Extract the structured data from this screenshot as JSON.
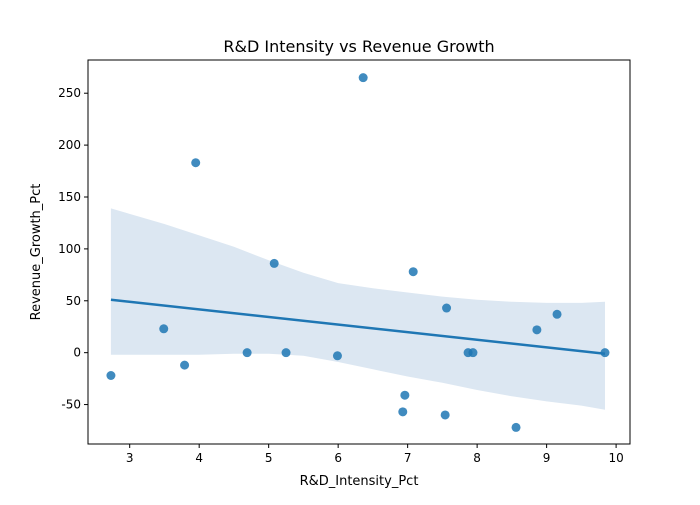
{
  "chart_data": {
    "type": "scatter",
    "title": "R&D Intensity vs Revenue Growth",
    "xlabel": "R&D_Intensity_Pct",
    "ylabel": "Revenue_Growth_Pct",
    "xlim": [
      2.4,
      10.2
    ],
    "ylim": [
      -88,
      282
    ],
    "x_ticks": [
      3,
      4,
      5,
      6,
      7,
      8,
      9,
      10
    ],
    "y_ticks": [
      -50,
      0,
      50,
      100,
      150,
      200,
      250
    ],
    "grid": false,
    "legend": "none",
    "points": [
      {
        "x": 2.73,
        "y": -22
      },
      {
        "x": 3.49,
        "y": 23
      },
      {
        "x": 3.79,
        "y": -12
      },
      {
        "x": 3.95,
        "y": 183
      },
      {
        "x": 4.69,
        "y": 0
      },
      {
        "x": 5.08,
        "y": 86
      },
      {
        "x": 5.25,
        "y": 0
      },
      {
        "x": 5.99,
        "y": -3
      },
      {
        "x": 6.36,
        "y": 265
      },
      {
        "x": 6.93,
        "y": -57
      },
      {
        "x": 6.96,
        "y": -41
      },
      {
        "x": 7.08,
        "y": 78
      },
      {
        "x": 7.54,
        "y": -60
      },
      {
        "x": 7.56,
        "y": 43
      },
      {
        "x": 7.87,
        "y": 0
      },
      {
        "x": 7.94,
        "y": 0
      },
      {
        "x": 8.56,
        "y": -72
      },
      {
        "x": 8.86,
        "y": 22
      },
      {
        "x": 9.15,
        "y": 37
      },
      {
        "x": 9.84,
        "y": 0
      }
    ],
    "regression": {
      "x": [
        2.73,
        9.84
      ],
      "y": [
        51,
        -1
      ]
    },
    "confidence_band": {
      "x": [
        2.73,
        3.5,
        4.0,
        4.5,
        5.0,
        5.5,
        6.0,
        6.5,
        7.0,
        7.5,
        8.0,
        8.5,
        9.0,
        9.5,
        9.84
      ],
      "upper": [
        139,
        124,
        113,
        102,
        89,
        77,
        67,
        62,
        58,
        54,
        51,
        49,
        48,
        48,
        49
      ],
      "lower": [
        -2,
        -2,
        -2,
        -1,
        -1,
        -3,
        -9,
        -16,
        -23,
        -29,
        -36,
        -42,
        -47,
        -51,
        -55
      ]
    },
    "colors": {
      "points": "#1f77b4",
      "line": "#1f77b4",
      "band": "#dce7f2"
    }
  }
}
